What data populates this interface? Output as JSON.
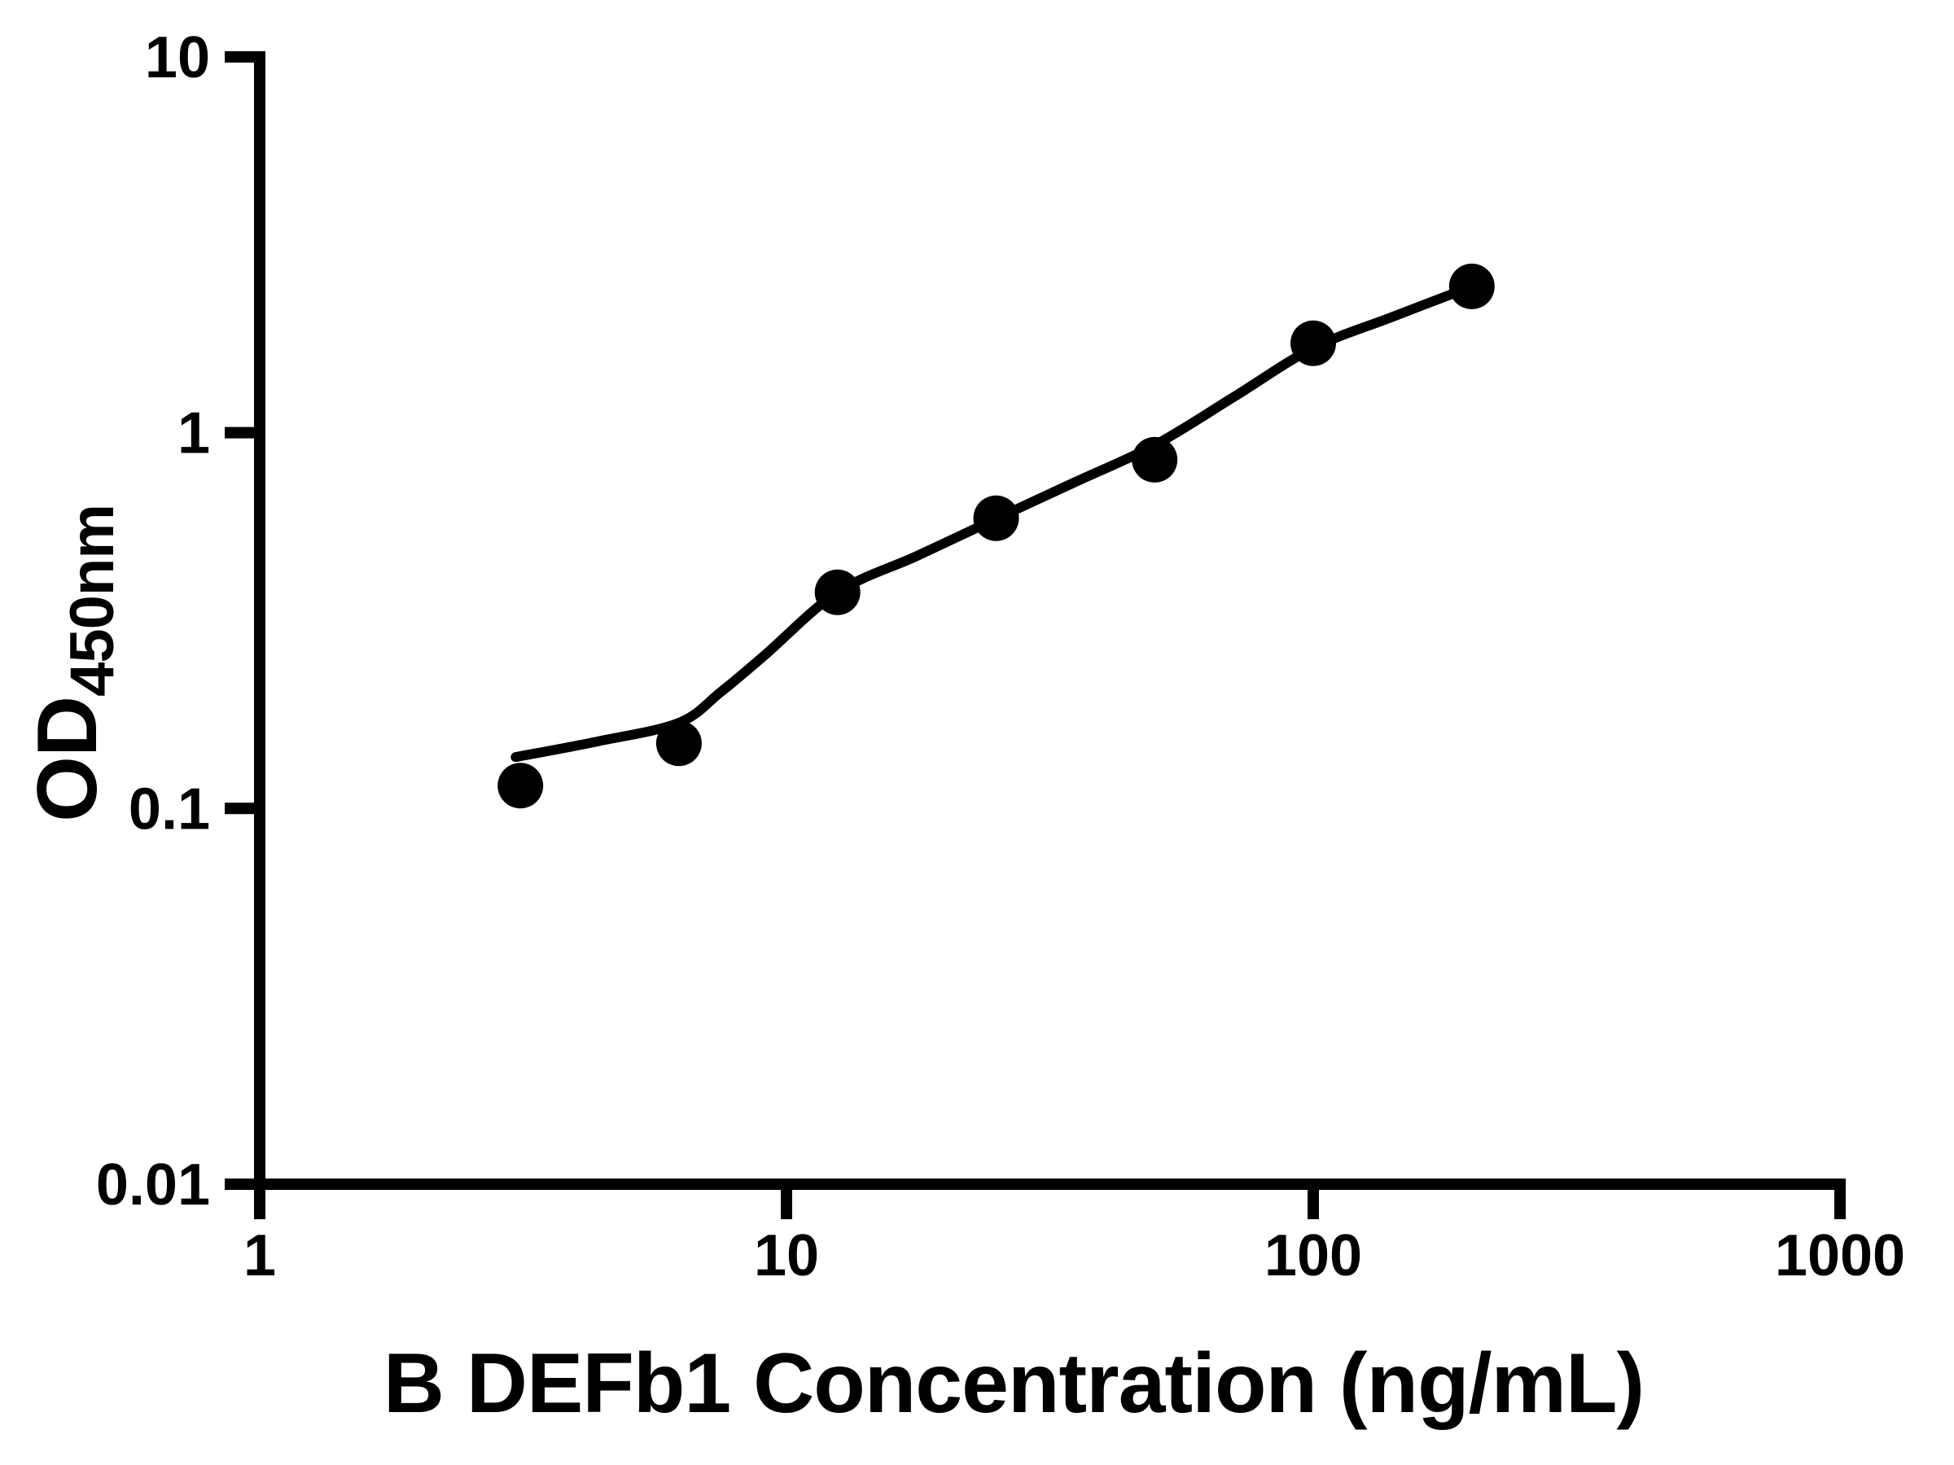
{
  "chart_data": {
    "type": "scatter",
    "title": "",
    "xlabel": "B DEFb1 Concentration (ng/mL)",
    "ylabel": "OD",
    "ylabel_sub": "450nm",
    "x_scale": "log",
    "y_scale": "log",
    "xlim": [
      1,
      1000
    ],
    "ylim": [
      0.01,
      10
    ],
    "grid": false,
    "legend": false,
    "color": "#000000",
    "x_ticks": [
      {
        "value": 1,
        "label": "1"
      },
      {
        "value": 10,
        "label": "10"
      },
      {
        "value": 100,
        "label": "100"
      },
      {
        "value": 1000,
        "label": "1000"
      }
    ],
    "y_ticks": [
      {
        "value": 10,
        "label": "10"
      },
      {
        "value": 1,
        "label": "1"
      },
      {
        "value": 0.1,
        "label": "0.1"
      },
      {
        "value": 0.01,
        "label": "0.01"
      }
    ],
    "points": [
      {
        "x": 3.125,
        "y": 0.115
      },
      {
        "x": 6.25,
        "y": 0.149
      },
      {
        "x": 12.5,
        "y": 0.376
      },
      {
        "x": 25,
        "y": 0.592
      },
      {
        "x": 50,
        "y": 0.847
      },
      {
        "x": 100,
        "y": 1.73
      },
      {
        "x": 200,
        "y": 2.45
      }
    ],
    "fit_curve": [
      [
        3.06,
        0.137
      ],
      [
        4.4,
        0.151
      ],
      [
        6.25,
        0.169
      ],
      [
        7.5,
        0.204
      ],
      [
        9.1,
        0.256
      ],
      [
        12.5,
        0.376
      ],
      [
        17.7,
        0.47
      ],
      [
        25,
        0.59
      ],
      [
        35.4,
        0.74
      ],
      [
        50,
        0.926
      ],
      [
        71,
        1.25
      ],
      [
        100,
        1.68
      ],
      [
        141,
        2.03
      ],
      [
        200,
        2.45
      ]
    ]
  }
}
